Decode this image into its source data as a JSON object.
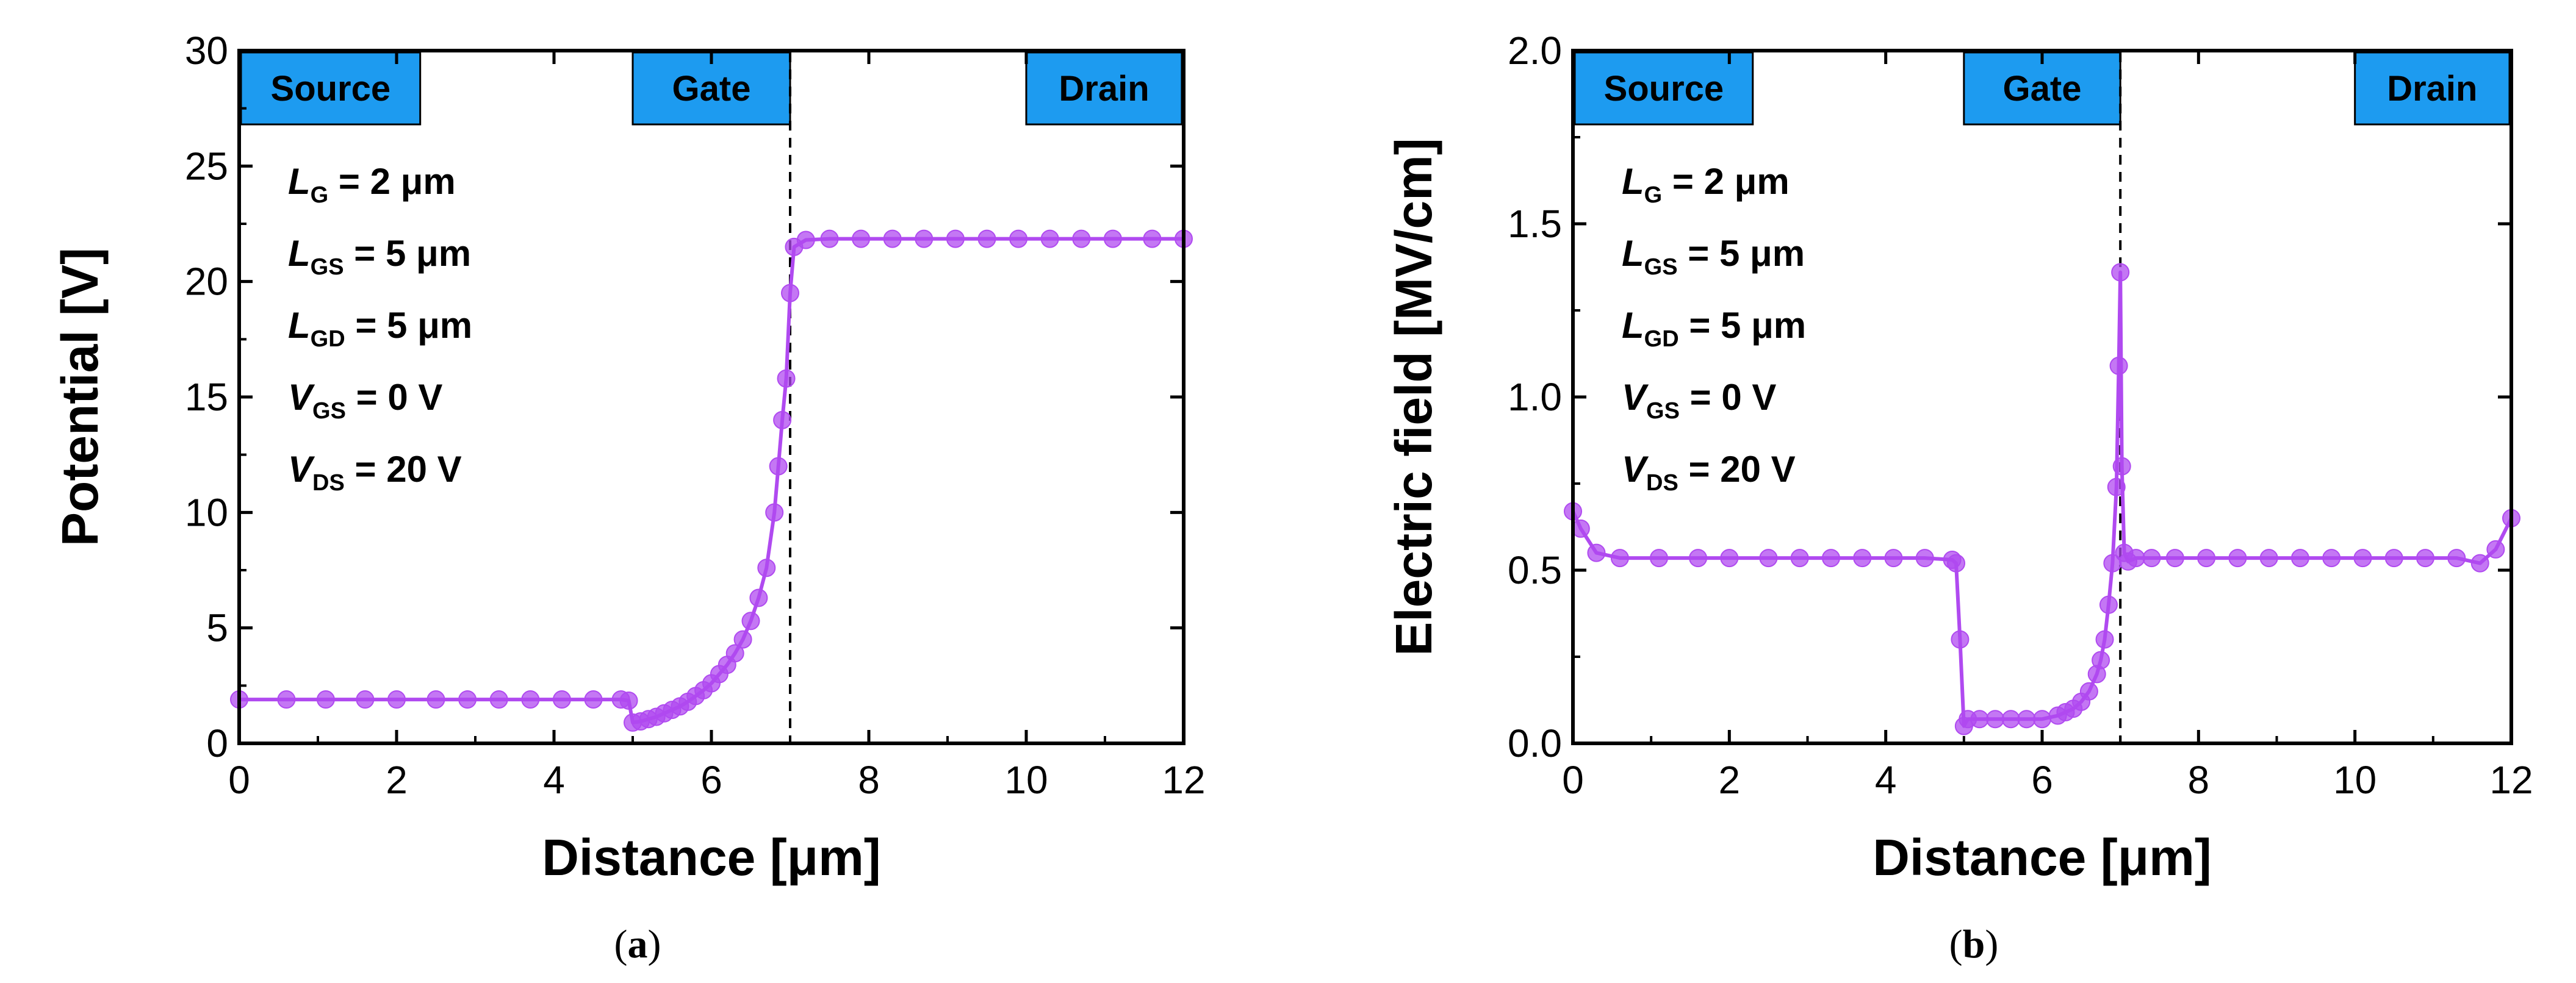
{
  "chart_data": [
    {
      "panel": "a",
      "caption": {
        "open": "(",
        "letter": "a",
        "close": ")"
      },
      "type": "line",
      "xlabel": "Distance [μm]",
      "ylabel": "Potential [V]",
      "xlim": [
        0,
        12
      ],
      "ylim": [
        0,
        30
      ],
      "xticks": [
        0,
        2,
        4,
        6,
        8,
        10,
        12
      ],
      "yticks": [
        0,
        5,
        10,
        15,
        20,
        25,
        30
      ],
      "grid": false,
      "regions": [
        {
          "label": "Source",
          "x": [
            0,
            2.3
          ]
        },
        {
          "label": "Gate",
          "x": [
            5.0,
            7.0
          ]
        },
        {
          "label": "Drain",
          "x": [
            10.0,
            12.0
          ]
        }
      ],
      "vline_x": 7.0,
      "annotations": [
        {
          "sym": "L",
          "sub": "G",
          "text": " = 2 μm"
        },
        {
          "sym": "L",
          "sub": "GS",
          "text": " = 5 μm"
        },
        {
          "sym": "L",
          "sub": "GD",
          "text": " = 5 μm"
        },
        {
          "sym": "V",
          "sub": "GS",
          "text": " = 0 V"
        },
        {
          "sym": "V",
          "sub": "DS",
          "text": " = 20 V"
        }
      ],
      "series": [
        {
          "name": "Potential",
          "color": "#b04af0",
          "x": [
            0.0,
            0.6,
            1.1,
            1.6,
            2.0,
            2.5,
            2.9,
            3.3,
            3.7,
            4.1,
            4.5,
            4.85,
            4.95,
            5.0,
            5.1,
            5.2,
            5.3,
            5.4,
            5.5,
            5.6,
            5.7,
            5.8,
            5.9,
            6.0,
            6.1,
            6.2,
            6.3,
            6.4,
            6.5,
            6.6,
            6.7,
            6.8,
            6.85,
            6.9,
            6.95,
            7.0,
            7.05,
            7.2,
            7.5,
            7.9,
            8.3,
            8.7,
            9.1,
            9.5,
            9.9,
            10.3,
            10.7,
            11.1,
            11.6,
            12.0
          ],
          "y": [
            1.9,
            1.9,
            1.9,
            1.9,
            1.9,
            1.9,
            1.9,
            1.9,
            1.9,
            1.9,
            1.9,
            1.9,
            1.85,
            0.9,
            0.95,
            1.05,
            1.15,
            1.3,
            1.45,
            1.6,
            1.8,
            2.05,
            2.3,
            2.6,
            3.0,
            3.4,
            3.9,
            4.5,
            5.3,
            6.3,
            7.6,
            10.0,
            12.0,
            14.0,
            15.8,
            19.5,
            21.5,
            21.8,
            21.85,
            21.85,
            21.85,
            21.85,
            21.85,
            21.85,
            21.85,
            21.85,
            21.85,
            21.85,
            21.85,
            21.85
          ]
        }
      ]
    },
    {
      "panel": "b",
      "caption": {
        "open": "(",
        "letter": "b",
        "close": ")"
      },
      "type": "line",
      "xlabel": "Distance [μm]",
      "ylabel": "Electric field [MV/cm]",
      "xlim": [
        0,
        12
      ],
      "ylim": [
        0,
        2.0
      ],
      "xticks": [
        0,
        2,
        4,
        6,
        8,
        10,
        12
      ],
      "yticks": [
        "0.0",
        "0.5",
        "1.0",
        "1.5",
        "2.0"
      ],
      "grid": false,
      "regions": [
        {
          "label": "Source",
          "x": [
            0,
            2.3
          ]
        },
        {
          "label": "Gate",
          "x": [
            5.0,
            7.0
          ]
        },
        {
          "label": "Drain",
          "x": [
            10.0,
            12.0
          ]
        }
      ],
      "vline_x": 7.0,
      "annotations": [
        {
          "sym": "L",
          "sub": "G",
          "text": " = 2 μm"
        },
        {
          "sym": "L",
          "sub": "GS",
          "text": " = 5 μm"
        },
        {
          "sym": "L",
          "sub": "GD",
          "text": " = 5 μm"
        },
        {
          "sym": "V",
          "sub": "GS",
          "text": " = 0 V"
        },
        {
          "sym": "V",
          "sub": "DS",
          "text": " = 20 V"
        }
      ],
      "series": [
        {
          "name": "Electric field",
          "color": "#b04af0",
          "x": [
            0.0,
            0.1,
            0.3,
            0.6,
            1.1,
            1.6,
            2.0,
            2.5,
            2.9,
            3.3,
            3.7,
            4.1,
            4.5,
            4.85,
            4.9,
            4.95,
            5.0,
            5.05,
            5.2,
            5.4,
            5.6,
            5.8,
            6.0,
            6.2,
            6.3,
            6.4,
            6.5,
            6.6,
            6.7,
            6.75,
            6.8,
            6.85,
            6.9,
            6.95,
            6.98,
            7.0,
            7.02,
            7.05,
            7.1,
            7.2,
            7.4,
            7.7,
            8.1,
            8.5,
            8.9,
            9.3,
            9.7,
            10.1,
            10.5,
            10.9,
            11.3,
            11.6,
            11.8,
            12.0
          ],
          "y": [
            0.67,
            0.62,
            0.55,
            0.535,
            0.535,
            0.535,
            0.535,
            0.535,
            0.535,
            0.535,
            0.535,
            0.535,
            0.535,
            0.53,
            0.52,
            0.3,
            0.05,
            0.07,
            0.07,
            0.07,
            0.07,
            0.07,
            0.07,
            0.08,
            0.09,
            0.1,
            0.12,
            0.15,
            0.2,
            0.24,
            0.3,
            0.4,
            0.52,
            0.74,
            1.09,
            1.36,
            0.8,
            0.55,
            0.525,
            0.535,
            0.535,
            0.535,
            0.535,
            0.535,
            0.535,
            0.535,
            0.535,
            0.535,
            0.535,
            0.535,
            0.535,
            0.52,
            0.56,
            0.65
          ]
        }
      ]
    }
  ]
}
